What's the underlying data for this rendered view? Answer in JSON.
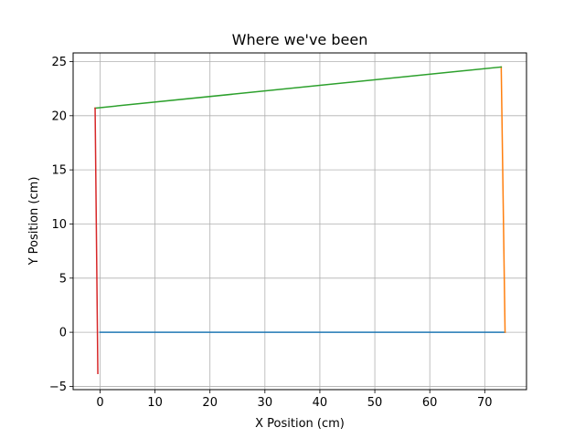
{
  "chart_data": {
    "type": "line",
    "title": "Where we've been",
    "xlabel": "X Position (cm)",
    "ylabel": "Y Position (cm)",
    "xlim": [
      -4.9,
      77.6
    ],
    "ylim": [
      -5.3,
      25.8
    ],
    "xticks": [
      0,
      10,
      20,
      30,
      40,
      50,
      60,
      70
    ],
    "yticks": [
      -5,
      0,
      5,
      10,
      15,
      20,
      25
    ],
    "grid": true,
    "series": [
      {
        "color": "#1f77b4",
        "x": [
          0,
          73.7
        ],
        "y": [
          0,
          0
        ]
      },
      {
        "color": "#ff7f0e",
        "x": [
          73.7,
          73.0
        ],
        "y": [
          0,
          24.5
        ]
      },
      {
        "color": "#2ca02c",
        "x": [
          73.0,
          -0.9
        ],
        "y": [
          24.5,
          20.7
        ]
      },
      {
        "color": "#d62728",
        "x": [
          -0.9,
          -0.4
        ],
        "y": [
          20.7,
          -3.8
        ]
      }
    ]
  }
}
